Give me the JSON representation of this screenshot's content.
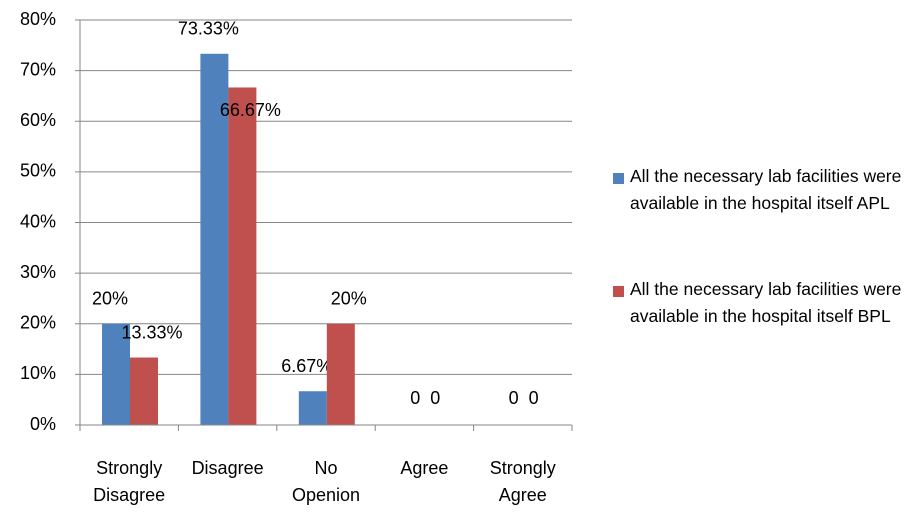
{
  "chart_data": {
    "type": "bar",
    "categories": [
      "Strongly Disagree",
      "Disagree",
      "No Openion",
      "Agree",
      "Strongly Agree"
    ],
    "series": [
      {
        "name": "All the necessary lab facilities were available in the hospital itself APL",
        "color": "#4f81bd",
        "values": [
          20,
          73.33,
          6.67,
          0,
          0
        ],
        "value_labels": [
          "20%",
          "73.33%",
          "6.67%",
          "0",
          "0"
        ]
      },
      {
        "name": "All the necessary lab facilities were available in the hospital itself BPL",
        "color": "#c0504d",
        "values": [
          13.33,
          66.67,
          20,
          0,
          0
        ],
        "value_labels": [
          "13.33%",
          "66.67%",
          "20%",
          "0",
          "0"
        ]
      }
    ],
    "ylim": [
      0,
      80
    ],
    "yticks": [
      {
        "value": 0,
        "label": "0%"
      },
      {
        "value": 10,
        "label": "10%"
      },
      {
        "value": 20,
        "label": "20%"
      },
      {
        "value": 30,
        "label": "30%"
      },
      {
        "value": 40,
        "label": "40%"
      },
      {
        "value": 50,
        "label": "50%"
      },
      {
        "value": 60,
        "label": "60%"
      },
      {
        "value": 70,
        "label": "70%"
      },
      {
        "value": 80,
        "label": "80%"
      }
    ],
    "grid": true,
    "legend": "right"
  }
}
